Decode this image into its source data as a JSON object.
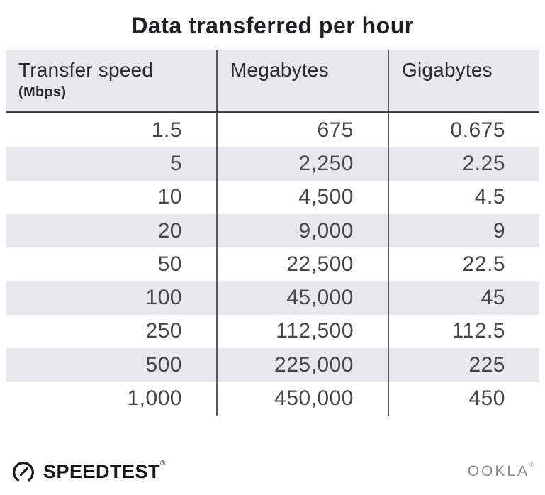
{
  "title": "Data transferred per hour",
  "table": {
    "columns": [
      {
        "label": "Transfer speed",
        "sub": "(Mbps)"
      },
      {
        "label": "Megabytes",
        "sub": ""
      },
      {
        "label": "Gigabytes",
        "sub": ""
      }
    ],
    "rows": [
      [
        "1.5",
        "675",
        "0.675"
      ],
      [
        "5",
        "2,250",
        "2.25"
      ],
      [
        "10",
        "4,500",
        "4.5"
      ],
      [
        "20",
        "9,000",
        "9"
      ],
      [
        "50",
        "22,500",
        "22.5"
      ],
      [
        "100",
        "45,000",
        "45"
      ],
      [
        "250",
        "112,500",
        "112.5"
      ],
      [
        "500",
        "225,000",
        "225"
      ],
      [
        "1,000",
        "450,000",
        "450"
      ]
    ]
  },
  "chart_data": {
    "type": "table",
    "title": "Data transferred per hour",
    "columns": [
      "Transfer speed (Mbps)",
      "Megabytes",
      "Gigabytes"
    ],
    "rows": [
      [
        1.5,
        675,
        0.675
      ],
      [
        5,
        2250,
        2.25
      ],
      [
        10,
        4500,
        4.5
      ],
      [
        20,
        9000,
        9
      ],
      [
        50,
        22500,
        22.5
      ],
      [
        100,
        45000,
        45
      ],
      [
        250,
        112500,
        112.5
      ],
      [
        500,
        225000,
        225
      ],
      [
        1000,
        450000,
        450
      ]
    ]
  },
  "footer": {
    "speedtest_label": "SPEEDTEST",
    "speedtest_reg": "®",
    "ookla_label": "OOKLA",
    "ookla_reg": "®"
  },
  "colors": {
    "title_text": "#1f1f23",
    "header_bg": "#e8e8ec",
    "header_text": "#2b2b2f",
    "header_line": "#3e3e41",
    "divider": "#58585b",
    "stripe": "#e8e8ec",
    "body_text": "#46464b",
    "logo_dark": "#17171a",
    "ookla_gray": "#8a8a8d"
  }
}
